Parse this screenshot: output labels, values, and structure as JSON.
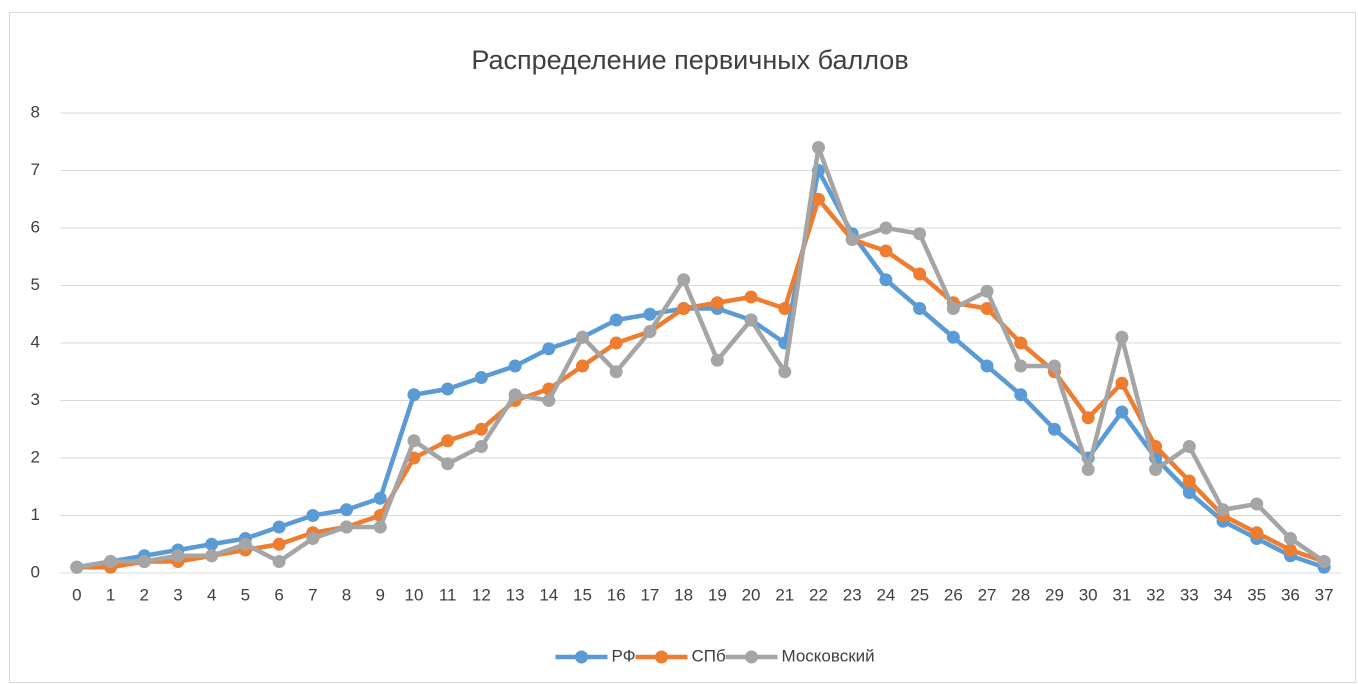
{
  "chart_data": {
    "type": "line",
    "title": "Распределение первичных баллов",
    "categories": [
      "0",
      "1",
      "2",
      "3",
      "4",
      "5",
      "6",
      "7",
      "8",
      "9",
      "10",
      "11",
      "12",
      "13",
      "14",
      "15",
      "16",
      "17",
      "18",
      "19",
      "20",
      "21",
      "22",
      "23",
      "24",
      "25",
      "26",
      "27",
      "28",
      "29",
      "30",
      "31",
      "32",
      "33",
      "34",
      "35",
      "36",
      "37"
    ],
    "series": [
      {
        "name": "РФ",
        "color": "#5b9bd5",
        "values": [
          0.1,
          0.2,
          0.3,
          0.4,
          0.5,
          0.6,
          0.8,
          1.0,
          1.1,
          1.3,
          3.1,
          3.2,
          3.4,
          3.6,
          3.9,
          4.1,
          4.4,
          4.5,
          4.6,
          4.6,
          4.4,
          4.0,
          7.0,
          5.9,
          5.1,
          4.6,
          4.1,
          3.6,
          3.1,
          2.5,
          2.0,
          2.8,
          2.0,
          1.4,
          0.9,
          0.6,
          0.3,
          0.1
        ]
      },
      {
        "name": "СПб",
        "color": "#ed7d31",
        "values": [
          0.1,
          0.1,
          0.2,
          0.2,
          0.3,
          0.4,
          0.5,
          0.7,
          0.8,
          1.0,
          2.0,
          2.3,
          2.5,
          3.0,
          3.2,
          3.6,
          4.0,
          4.2,
          4.6,
          4.7,
          4.8,
          4.6,
          6.5,
          5.8,
          5.6,
          5.2,
          4.7,
          4.6,
          4.0,
          3.5,
          2.7,
          3.3,
          2.2,
          1.6,
          1.0,
          0.7,
          0.4,
          0.2
        ]
      },
      {
        "name": "Московский",
        "color": "#a5a5a5",
        "values": [
          0.1,
          0.2,
          0.2,
          0.3,
          0.3,
          0.5,
          0.2,
          0.6,
          0.8,
          0.8,
          2.3,
          1.9,
          2.2,
          3.1,
          3.0,
          4.1,
          3.5,
          4.2,
          5.1,
          3.7,
          4.4,
          3.5,
          7.4,
          5.8,
          6.0,
          5.9,
          4.6,
          4.9,
          3.6,
          3.6,
          1.8,
          4.1,
          1.8,
          2.2,
          1.1,
          1.2,
          0.6,
          0.2
        ]
      }
    ],
    "ylim": [
      0,
      8
    ],
    "yticks": [
      0,
      1,
      2,
      3,
      4,
      5,
      6,
      7,
      8
    ],
    "grid": true,
    "legend": "bottom"
  }
}
